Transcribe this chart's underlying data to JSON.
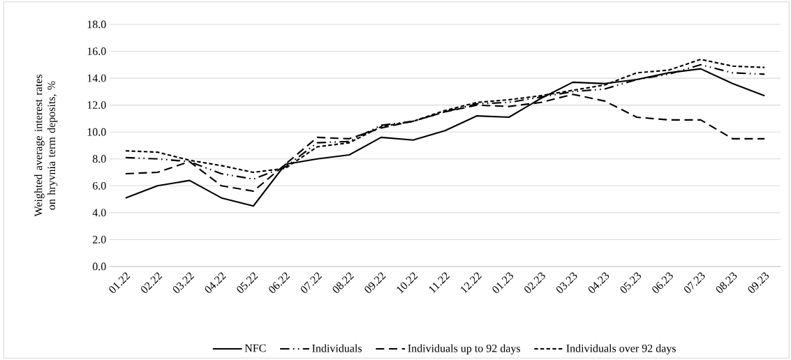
{
  "chart_data": {
    "type": "line",
    "ylabel": "Weighted average interest rates on hryvnia term deposits, %",
    "categories": [
      "01.22",
      "02.22",
      "03.22",
      "04.22",
      "05.22",
      "06.22",
      "07.22",
      "08.22",
      "09.22",
      "10.22",
      "11.22",
      "12.22",
      "01.23",
      "02.23",
      "03.23",
      "04.23",
      "05.23",
      "06.23",
      "07.23",
      "08.23",
      "09.23"
    ],
    "series": [
      {
        "name": "NFC",
        "color": "#000000",
        "line_style": "solid",
        "values": [
          5.1,
          6.0,
          6.4,
          5.1,
          4.5,
          7.6,
          8.0,
          8.3,
          9.6,
          9.4,
          10.1,
          11.2,
          11.1,
          12.5,
          13.7,
          13.6,
          13.9,
          14.4,
          14.7,
          13.6,
          12.7
        ]
      },
      {
        "name": "Individuals",
        "color": "#000000",
        "line_style": "dashdotdot",
        "values": [
          8.1,
          8.0,
          7.8,
          6.9,
          6.5,
          7.4,
          9.2,
          9.3,
          10.5,
          10.8,
          11.5,
          12.1,
          12.2,
          12.6,
          13.0,
          13.2,
          13.9,
          14.3,
          15.0,
          14.4,
          14.3
        ]
      },
      {
        "name": "Individuals up to 92 days",
        "color": "#000000",
        "line_style": "dashed",
        "values": [
          6.9,
          7.0,
          7.8,
          6.0,
          5.6,
          7.6,
          9.6,
          9.5,
          10.3,
          10.8,
          11.5,
          12.0,
          11.9,
          12.2,
          12.8,
          12.3,
          11.1,
          10.9,
          10.9,
          9.5,
          9.5
        ]
      },
      {
        "name": "Individuals over 92 days",
        "color": "#000000",
        "line_style": "shortdashed",
        "values": [
          8.6,
          8.5,
          7.9,
          7.5,
          7.0,
          7.3,
          8.9,
          9.2,
          10.4,
          10.8,
          11.6,
          12.2,
          12.4,
          12.7,
          13.1,
          13.5,
          14.4,
          14.6,
          15.4,
          14.9,
          14.8
        ]
      }
    ],
    "ylim": [
      0,
      18
    ],
    "yticks": [
      {
        "value": 0,
        "label": "0.0"
      },
      {
        "value": 2,
        "label": "2.0"
      },
      {
        "value": 4,
        "label": "4.0"
      },
      {
        "value": 6,
        "label": "6.0"
      },
      {
        "value": 8,
        "label": "8.0"
      },
      {
        "value": 10,
        "label": "10.0"
      },
      {
        "value": 12,
        "label": "12.0"
      },
      {
        "value": 14,
        "label": "14.0"
      },
      {
        "value": 16,
        "label": "16.0"
      },
      {
        "value": 18,
        "label": "18.0"
      }
    ],
    "grid": "y",
    "legend": "bottom",
    "marker": "none"
  }
}
